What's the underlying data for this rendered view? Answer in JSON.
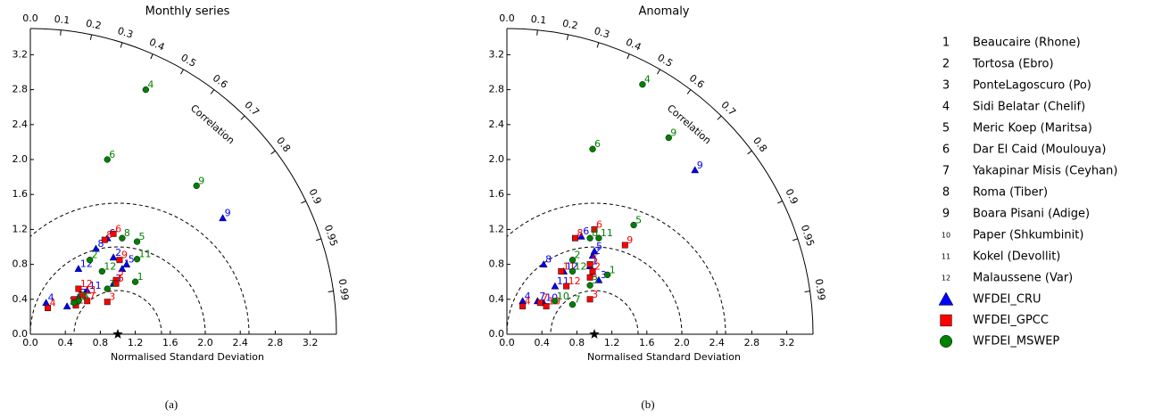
{
  "chart_data": [
    {
      "type": "taylor",
      "title": "Monthly series",
      "panel_label": "(a)",
      "xlabel": "Normalised Standard Deviation",
      "corr_label": "Correlation",
      "xlim": [
        0,
        3.5
      ],
      "ylim": [
        0,
        3.5
      ],
      "xticks": [
        {
          "value": 0,
          "label": "0.0"
        },
        0.4,
        0.8,
        1.2,
        1.6,
        {
          "value": 2,
          "label": "2.0"
        },
        2.4,
        2.8,
        3.2
      ],
      "yticks": [
        {
          "value": 0,
          "label": "0.0"
        },
        0.4,
        0.8,
        1.2,
        1.6,
        {
          "value": 2,
          "label": "2.0"
        },
        2.4,
        2.8,
        3.2
      ],
      "corr_ticks": [
        {
          "value": 0,
          "label": "0.0"
        },
        0.1,
        0.2,
        0.3,
        0.4,
        0.5,
        0.6,
        0.7,
        0.8,
        0.9,
        0.95,
        0.99
      ],
      "rms_contours": [
        0.5,
        1,
        1.5
      ],
      "reference_std": 1,
      "series": [
        {
          "name": "WFDEI_CRU",
          "marker": "triangle",
          "color": "#0000ff",
          "x": [
            1.05,
            0.95,
            0.95,
            0.18,
            1.1,
            0.88,
            0.55,
            0.75,
            2.2,
            0.42,
            0.65,
            0.55
          ],
          "y": [
            0.75,
            0.88,
            0.58,
            0.36,
            0.8,
            1.1,
            0.42,
            0.98,
            1.33,
            0.32,
            0.5,
            0.75
          ]
        },
        {
          "name": "WFDEI_GPCC",
          "marker": "square",
          "color": "#ff0000",
          "x": [
            0.5,
            0.98,
            0.88,
            0.2,
            0.98,
            0.95,
            0.65,
            0.85,
            1.02,
            0.52,
            0.6,
            0.55
          ],
          "y": [
            0.4,
            0.62,
            0.37,
            0.3,
            0.58,
            1.15,
            0.38,
            1.08,
            0.85,
            0.33,
            0.45,
            0.52
          ]
        },
        {
          "name": "WFDEI_MSWEP",
          "marker": "circle",
          "color": "#008000",
          "x": [
            1.2,
            0.68,
            0.88,
            1.32,
            1.22,
            0.88,
            0.55,
            1.05,
            1.9,
            0.5,
            1.22,
            0.82
          ],
          "y": [
            0.6,
            0.85,
            0.52,
            2.8,
            1.06,
            2.0,
            0.38,
            1.1,
            1.7,
            0.36,
            0.86,
            0.72
          ]
        }
      ]
    },
    {
      "type": "taylor",
      "title": "Anomaly",
      "panel_label": "(b)",
      "xlabel": "Normalised Standard Deviation",
      "corr_label": "Correlation",
      "xlim": [
        0,
        3.5
      ],
      "ylim": [
        0,
        3.5
      ],
      "xticks": [
        {
          "value": 0,
          "label": "0.0"
        },
        0.4,
        0.8,
        1.2,
        1.6,
        {
          "value": 2,
          "label": "2.0"
        },
        2.4,
        2.8,
        3.2
      ],
      "yticks": [
        {
          "value": 0,
          "label": "0.0"
        },
        0.4,
        0.8,
        1.2,
        1.6,
        {
          "value": 2,
          "label": "2.0"
        },
        2.4,
        2.8,
        3.2
      ],
      "corr_ticks": [
        {
          "value": 0,
          "label": "0.0"
        },
        0.1,
        0.2,
        0.3,
        0.4,
        0.5,
        0.6,
        0.7,
        0.8,
        0.9,
        0.95,
        0.99
      ],
      "rms_contours": [
        0.5,
        1,
        1.5
      ],
      "reference_std": 1,
      "series": [
        {
          "name": "WFDEI_CRU",
          "marker": "triangle",
          "color": "#0000ff",
          "x": [
            0.95,
            0.98,
            1.05,
            0.18,
            1.0,
            0.85,
            0.35,
            0.42,
            2.15,
            0.42,
            0.55,
            0.65
          ],
          "y": [
            0.78,
            0.9,
            0.62,
            0.38,
            0.95,
            1.12,
            0.38,
            0.8,
            1.88,
            0.36,
            0.55,
            0.72
          ]
        },
        {
          "name": "WFDEI_GPCC",
          "marker": "square",
          "color": "#ff0000",
          "x": [
            0.95,
            0.98,
            0.95,
            0.18,
            0.95,
            1.0,
            0.38,
            0.78,
            1.35,
            0.45,
            0.62,
            0.68
          ],
          "y": [
            0.65,
            0.72,
            0.4,
            0.32,
            0.8,
            1.2,
            0.36,
            1.1,
            1.02,
            0.32,
            0.72,
            0.55
          ]
        },
        {
          "name": "WFDEI_MSWEP",
          "marker": "circle",
          "color": "#008000",
          "x": [
            1.15,
            0.75,
            0.95,
            1.55,
            1.45,
            0.98,
            0.75,
            0.95,
            1.85,
            0.55,
            1.05,
            0.75
          ],
          "y": [
            0.68,
            0.85,
            0.56,
            2.86,
            1.25,
            2.12,
            0.34,
            1.1,
            2.25,
            0.38,
            1.1,
            0.72
          ]
        }
      ]
    }
  ],
  "stations": [
    {
      "number": "1",
      "name": "Beaucaire (Rhone)"
    },
    {
      "number": "2",
      "name": "Tortosa (Ebro)"
    },
    {
      "number": "3",
      "name": "PonteLagoscuro (Po)"
    },
    {
      "number": "4",
      "name": "Sidi Belatar (Chelif)"
    },
    {
      "number": "5",
      "name": "Meric Koep (Maritsa)"
    },
    {
      "number": "6",
      "name": "Dar El Caid (Moulouya)"
    },
    {
      "number": "7",
      "name": "Yakapinar Misis (Ceyhan)"
    },
    {
      "number": "8",
      "name": "Roma (Tiber)"
    },
    {
      "number": "9",
      "name": "Boara Pisani (Adige)"
    },
    {
      "number": "10",
      "name": "Paper (Shkumbinit)"
    },
    {
      "number": "11",
      "name": "Kokel (Devollit)"
    },
    {
      "number": "12",
      "name": "Malaussene (Var)"
    }
  ]
}
